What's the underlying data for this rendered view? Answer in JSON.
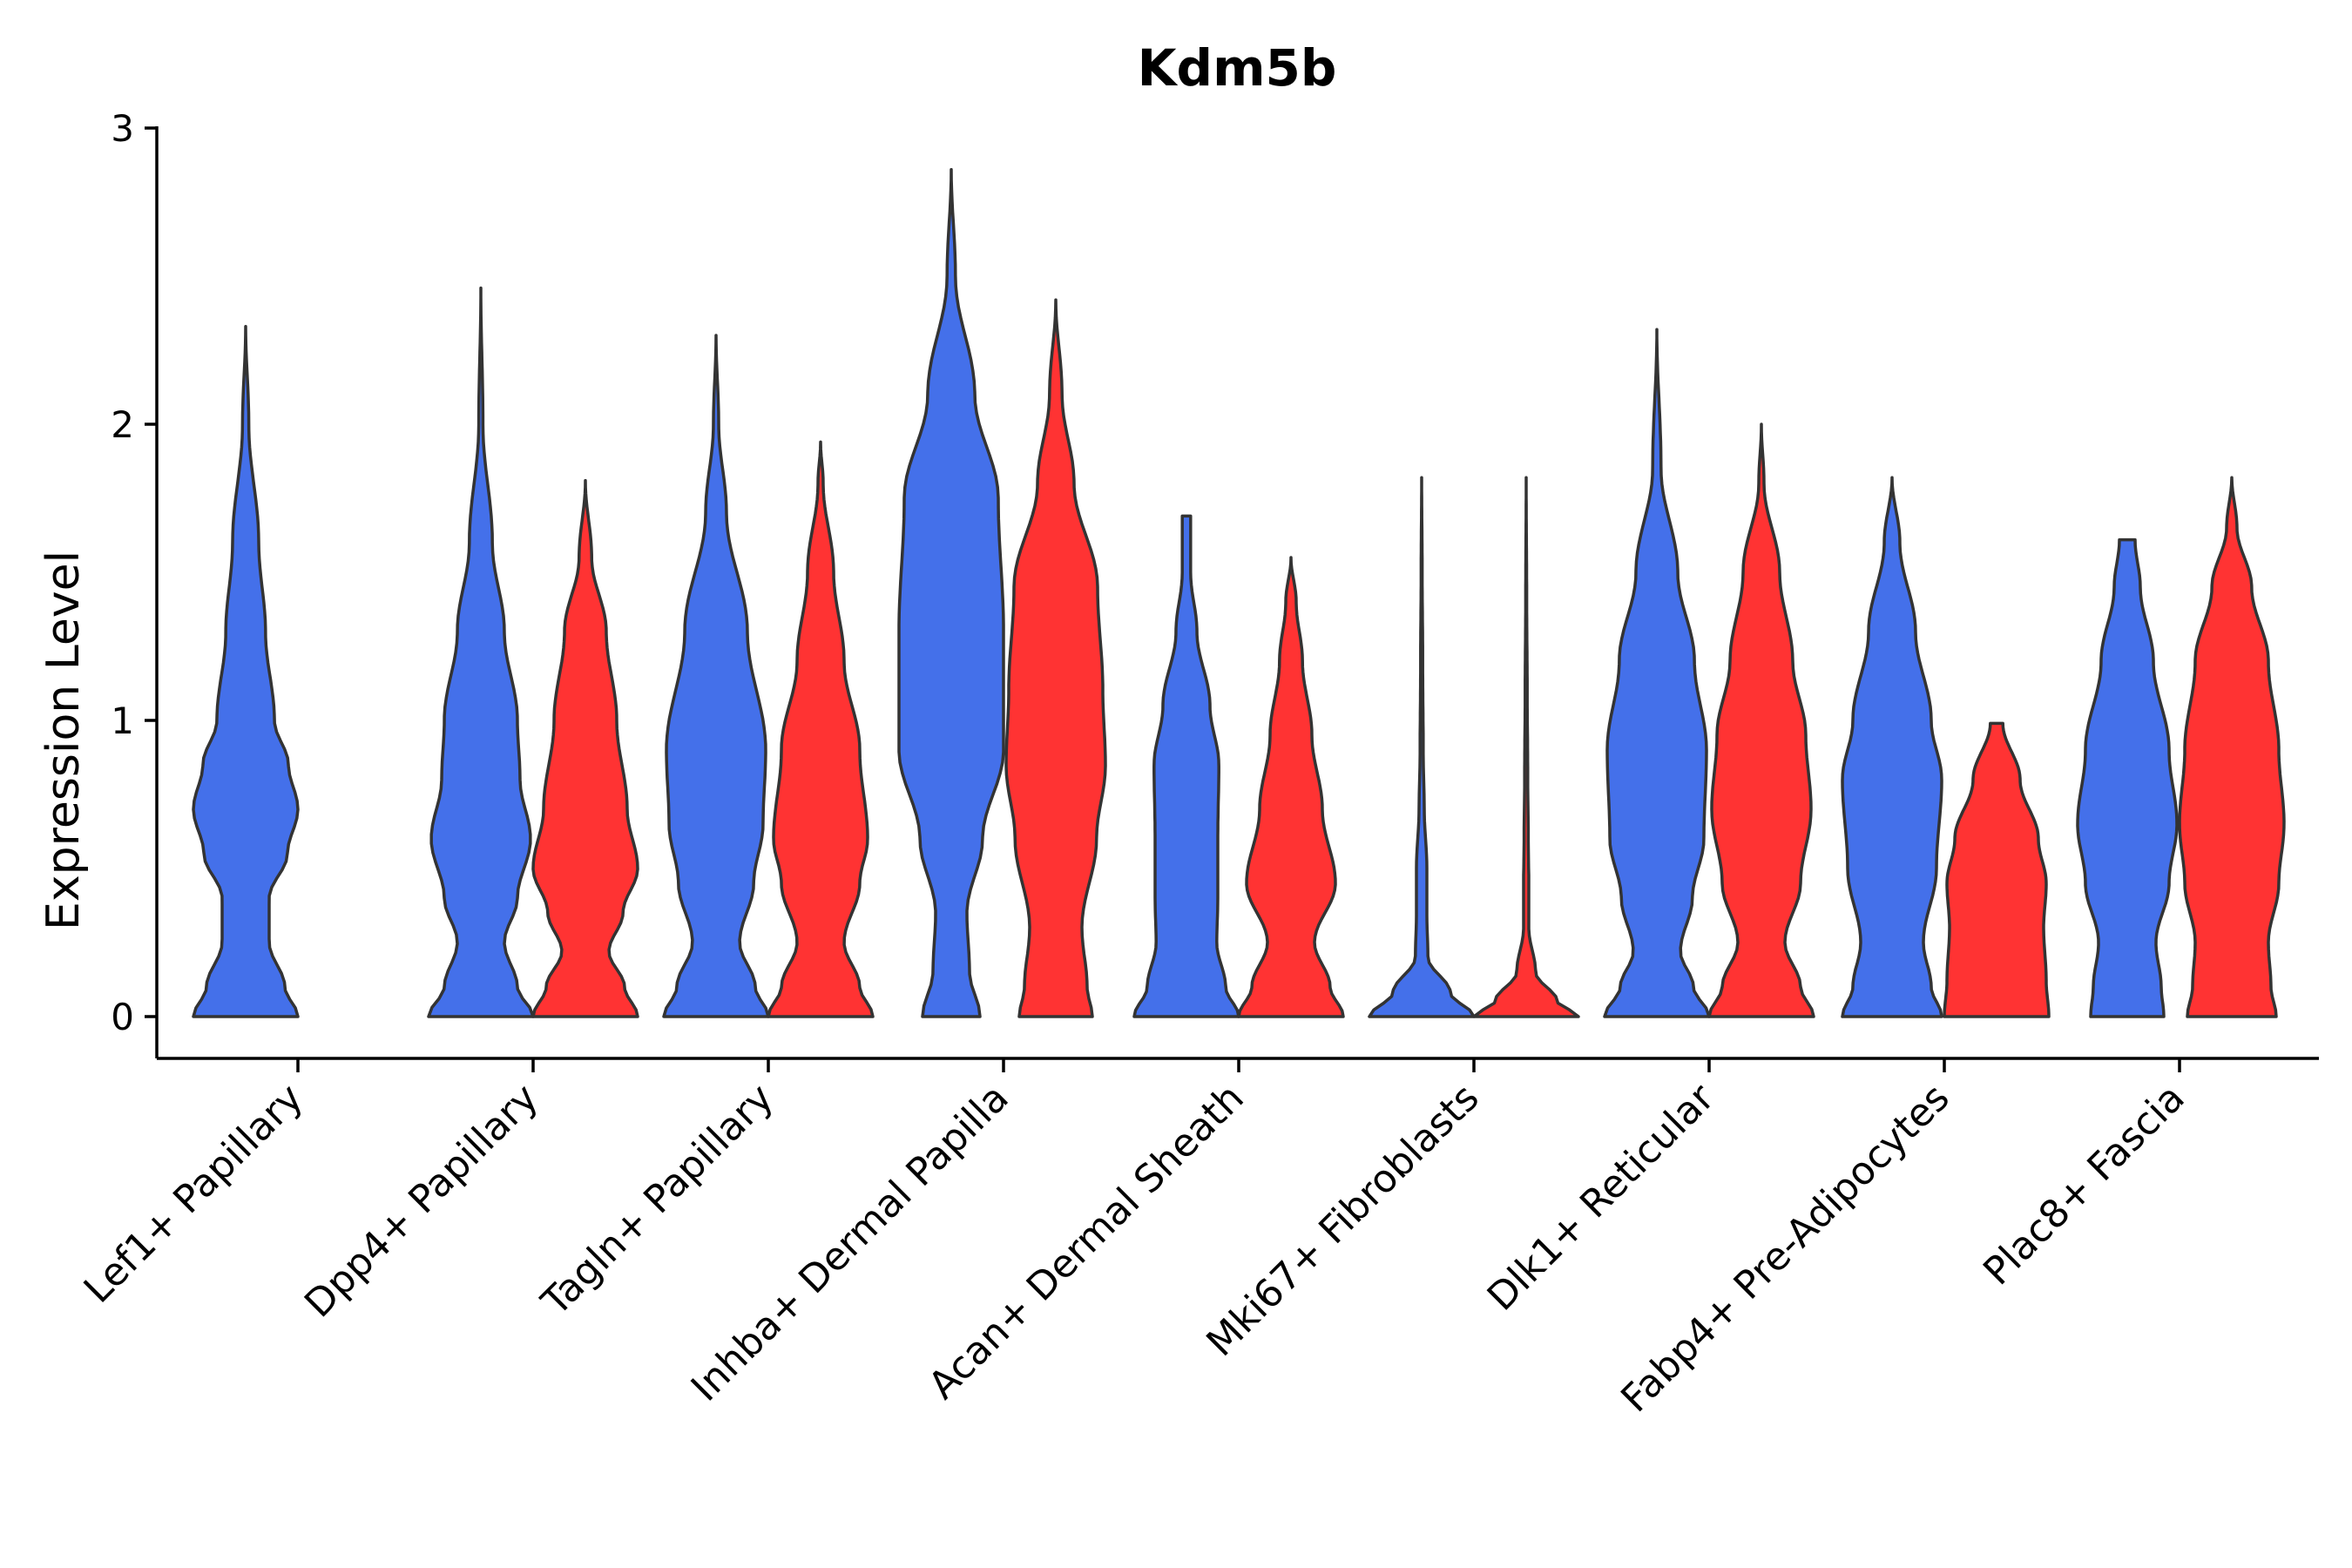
{
  "chart_data": {
    "type": "violin",
    "title": "Kdm5b",
    "xlabel": "",
    "ylabel": "Expression Level",
    "ylim": [
      -0.14,
      3
    ],
    "yticks": [
      0,
      1,
      2,
      3
    ],
    "grid": false,
    "legend": "none",
    "groups": [
      "blue",
      "red"
    ],
    "colors": {
      "blue": "#4470EA",
      "red": "#FF3333",
      "outline": "#333333",
      "axis": "#000000"
    },
    "categories": [
      "Lef1+ Papillary",
      "Dpp4+ Papillary",
      "Tagln+ Papillary",
      "Inhba+ Dermal Papilla",
      "Acan+ Dermal Sheath",
      "Mki67+ Fibroblasts",
      "Dlk1+ Reticular",
      "Fabp4+ Pre-Adipocytes",
      "Plac8+ Fascia"
    ],
    "violins": [
      {
        "category": 0,
        "group": "blue",
        "max": 2.33,
        "profile": [
          [
            0,
            1.0
          ],
          [
            0.1,
            0.75
          ],
          [
            0.25,
            0.45
          ],
          [
            0.4,
            0.45
          ],
          [
            0.55,
            0.8
          ],
          [
            0.7,
            1.0
          ],
          [
            0.85,
            0.82
          ],
          [
            1.0,
            0.55
          ],
          [
            1.3,
            0.38
          ],
          [
            1.6,
            0.25
          ],
          [
            2.0,
            0.06
          ],
          [
            2.33,
            0.0
          ]
        ]
      },
      {
        "category": 1,
        "group": "blue",
        "max": 2.46,
        "profile": [
          [
            0,
            1.0
          ],
          [
            0.1,
            0.7
          ],
          [
            0.25,
            0.45
          ],
          [
            0.4,
            0.7
          ],
          [
            0.6,
            0.95
          ],
          [
            0.8,
            0.75
          ],
          [
            1.0,
            0.7
          ],
          [
            1.3,
            0.45
          ],
          [
            1.6,
            0.22
          ],
          [
            2.0,
            0.04
          ],
          [
            2.46,
            0.0
          ]
        ]
      },
      {
        "category": 1,
        "group": "red",
        "max": 1.81,
        "profile": [
          [
            0,
            1.0
          ],
          [
            0.1,
            0.75
          ],
          [
            0.22,
            0.45
          ],
          [
            0.35,
            0.72
          ],
          [
            0.5,
            1.0
          ],
          [
            0.7,
            0.8
          ],
          [
            1.0,
            0.6
          ],
          [
            1.3,
            0.4
          ],
          [
            1.55,
            0.12
          ],
          [
            1.81,
            0.0
          ]
        ]
      },
      {
        "category": 2,
        "group": "blue",
        "max": 2.3,
        "profile": [
          [
            0,
            1.0
          ],
          [
            0.1,
            0.75
          ],
          [
            0.25,
            0.45
          ],
          [
            0.45,
            0.72
          ],
          [
            0.65,
            0.9
          ],
          [
            0.9,
            0.95
          ],
          [
            1.3,
            0.6
          ],
          [
            1.7,
            0.2
          ],
          [
            2.0,
            0.05
          ],
          [
            2.3,
            0.0
          ]
        ]
      },
      {
        "category": 2,
        "group": "red",
        "max": 1.94,
        "profile": [
          [
            0,
            1.0
          ],
          [
            0.1,
            0.75
          ],
          [
            0.25,
            0.45
          ],
          [
            0.45,
            0.75
          ],
          [
            0.6,
            0.9
          ],
          [
            0.9,
            0.75
          ],
          [
            1.2,
            0.45
          ],
          [
            1.5,
            0.25
          ],
          [
            1.8,
            0.05
          ],
          [
            1.94,
            0.0
          ]
        ]
      },
      {
        "category": 3,
        "group": "blue",
        "max": 2.86,
        "profile": [
          [
            0,
            0.55
          ],
          [
            0.15,
            0.35
          ],
          [
            0.35,
            0.3
          ],
          [
            0.6,
            0.6
          ],
          [
            0.9,
            1.0
          ],
          [
            1.3,
            1.0
          ],
          [
            1.75,
            0.9
          ],
          [
            2.1,
            0.45
          ],
          [
            2.5,
            0.08
          ],
          [
            2.86,
            0.0
          ]
        ]
      },
      {
        "category": 3,
        "group": "red",
        "max": 2.42,
        "profile": [
          [
            0,
            0.7
          ],
          [
            0.1,
            0.6
          ],
          [
            0.3,
            0.5
          ],
          [
            0.6,
            0.78
          ],
          [
            0.85,
            0.95
          ],
          [
            1.1,
            0.9
          ],
          [
            1.45,
            0.8
          ],
          [
            1.8,
            0.35
          ],
          [
            2.1,
            0.12
          ],
          [
            2.42,
            0.0
          ]
        ]
      },
      {
        "category": 4,
        "group": "blue",
        "max": 1.69,
        "profile": [
          [
            0,
            1.0
          ],
          [
            0.1,
            0.75
          ],
          [
            0.25,
            0.58
          ],
          [
            0.4,
            0.6
          ],
          [
            0.6,
            0.6
          ],
          [
            0.85,
            0.62
          ],
          [
            1.05,
            0.45
          ],
          [
            1.3,
            0.2
          ],
          [
            1.5,
            0.08
          ],
          [
            1.69,
            0.08
          ]
        ]
      },
      {
        "category": 4,
        "group": "red",
        "max": 1.55,
        "profile": [
          [
            0,
            1.0
          ],
          [
            0.1,
            0.75
          ],
          [
            0.25,
            0.45
          ],
          [
            0.45,
            0.85
          ],
          [
            0.7,
            0.6
          ],
          [
            0.95,
            0.4
          ],
          [
            1.2,
            0.22
          ],
          [
            1.4,
            0.1
          ],
          [
            1.55,
            0.0
          ]
        ]
      },
      {
        "category": 5,
        "group": "blue",
        "max": 1.82,
        "profile": [
          [
            0,
            1.0
          ],
          [
            0.08,
            0.55
          ],
          [
            0.2,
            0.12
          ],
          [
            0.35,
            0.1
          ],
          [
            0.5,
            0.1
          ],
          [
            0.7,
            0.05
          ],
          [
            0.9,
            0.03
          ],
          [
            1.2,
            0.02
          ],
          [
            1.5,
            0.01
          ],
          [
            1.82,
            0.0
          ]
        ]
      },
      {
        "category": 5,
        "group": "red",
        "max": 1.82,
        "profile": [
          [
            0,
            1.0
          ],
          [
            0.05,
            0.6
          ],
          [
            0.15,
            0.18
          ],
          [
            0.3,
            0.05
          ],
          [
            0.45,
            0.05
          ],
          [
            0.6,
            0.04
          ],
          [
            0.8,
            0.03
          ],
          [
            1.1,
            0.02
          ],
          [
            1.4,
            0.01
          ],
          [
            1.82,
            0.0
          ]
        ]
      },
      {
        "category": 6,
        "group": "blue",
        "max": 2.32,
        "profile": [
          [
            0,
            1.0
          ],
          [
            0.1,
            0.7
          ],
          [
            0.22,
            0.45
          ],
          [
            0.4,
            0.68
          ],
          [
            0.6,
            0.9
          ],
          [
            0.9,
            0.95
          ],
          [
            1.2,
            0.72
          ],
          [
            1.5,
            0.4
          ],
          [
            1.85,
            0.08
          ],
          [
            2.32,
            0.0
          ]
        ]
      },
      {
        "category": 6,
        "group": "red",
        "max": 2.0,
        "profile": [
          [
            0,
            1.0
          ],
          [
            0.1,
            0.75
          ],
          [
            0.25,
            0.45
          ],
          [
            0.45,
            0.75
          ],
          [
            0.7,
            0.95
          ],
          [
            0.95,
            0.85
          ],
          [
            1.2,
            0.6
          ],
          [
            1.5,
            0.35
          ],
          [
            1.8,
            0.05
          ],
          [
            2.0,
            0.0
          ]
        ]
      },
      {
        "category": 7,
        "group": "blue",
        "max": 1.82,
        "profile": [
          [
            0,
            0.95
          ],
          [
            0.1,
            0.75
          ],
          [
            0.25,
            0.6
          ],
          [
            0.5,
            0.85
          ],
          [
            0.8,
            0.95
          ],
          [
            1.0,
            0.75
          ],
          [
            1.3,
            0.45
          ],
          [
            1.6,
            0.15
          ],
          [
            1.82,
            0.0
          ]
        ]
      },
      {
        "category": 7,
        "group": "red",
        "max": 0.99,
        "profile": [
          [
            0,
            1.0
          ],
          [
            0.12,
            0.95
          ],
          [
            0.3,
            0.9
          ],
          [
            0.45,
            0.95
          ],
          [
            0.6,
            0.8
          ],
          [
            0.8,
            0.45
          ],
          [
            0.99,
            0.12
          ]
        ]
      },
      {
        "category": 8,
        "group": "blue",
        "max": 1.61,
        "profile": [
          [
            0,
            0.7
          ],
          [
            0.1,
            0.65
          ],
          [
            0.25,
            0.55
          ],
          [
            0.45,
            0.8
          ],
          [
            0.65,
            0.95
          ],
          [
            0.9,
            0.8
          ],
          [
            1.2,
            0.5
          ],
          [
            1.45,
            0.25
          ],
          [
            1.61,
            0.15
          ]
        ]
      },
      {
        "category": 8,
        "group": "red",
        "max": 1.82,
        "profile": [
          [
            0,
            0.85
          ],
          [
            0.1,
            0.75
          ],
          [
            0.25,
            0.7
          ],
          [
            0.45,
            0.9
          ],
          [
            0.65,
            1.0
          ],
          [
            0.9,
            0.9
          ],
          [
            1.2,
            0.7
          ],
          [
            1.45,
            0.38
          ],
          [
            1.65,
            0.1
          ],
          [
            1.82,
            0.0
          ]
        ]
      }
    ]
  }
}
